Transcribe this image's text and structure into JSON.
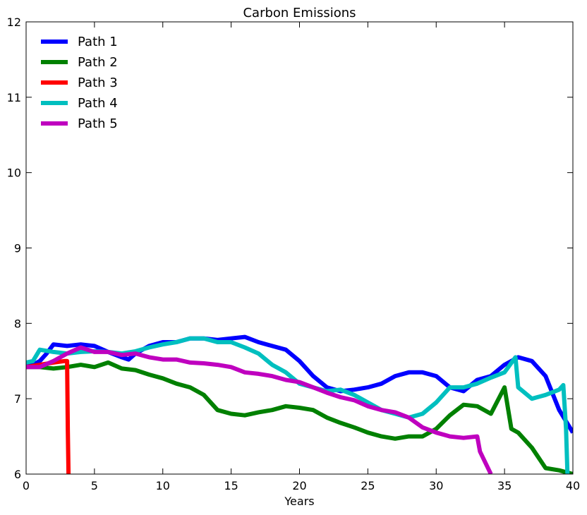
{
  "chart_data": {
    "type": "line",
    "title": "Carbon Emissions",
    "xlabel": "Years",
    "ylabel": "",
    "xlim": [
      0,
      40
    ],
    "ylim": [
      6,
      12
    ],
    "xticks": [
      0,
      5,
      10,
      15,
      20,
      25,
      30,
      35,
      40
    ],
    "yticks": [
      6,
      7,
      8,
      9,
      10,
      11,
      12
    ],
    "grid": false,
    "legend_position": "top-left",
    "series": [
      {
        "name": "Path 1",
        "color": "#0000ff",
        "points": [
          [
            0,
            7.47
          ],
          [
            0.5,
            7.45
          ],
          [
            1,
            7.5
          ],
          [
            1.5,
            7.6
          ],
          [
            2,
            7.72
          ],
          [
            3,
            7.7
          ],
          [
            4,
            7.72
          ],
          [
            5,
            7.7
          ],
          [
            6,
            7.62
          ],
          [
            7,
            7.55
          ],
          [
            7.5,
            7.52
          ],
          [
            8,
            7.6
          ],
          [
            9,
            7.7
          ],
          [
            10,
            7.75
          ],
          [
            11,
            7.75
          ],
          [
            12,
            7.8
          ],
          [
            13,
            7.8
          ],
          [
            14,
            7.78
          ],
          [
            15,
            7.8
          ],
          [
            16,
            7.82
          ],
          [
            17,
            7.75
          ],
          [
            18,
            7.7
          ],
          [
            19,
            7.65
          ],
          [
            20,
            7.5
          ],
          [
            21,
            7.3
          ],
          [
            22,
            7.15
          ],
          [
            23,
            7.1
          ],
          [
            24,
            7.12
          ],
          [
            25,
            7.15
          ],
          [
            26,
            7.2
          ],
          [
            27,
            7.3
          ],
          [
            28,
            7.35
          ],
          [
            29,
            7.35
          ],
          [
            30,
            7.3
          ],
          [
            31,
            7.15
          ],
          [
            32,
            7.1
          ],
          [
            33,
            7.25
          ],
          [
            34,
            7.3
          ],
          [
            35,
            7.45
          ],
          [
            36,
            7.55
          ],
          [
            37,
            7.5
          ],
          [
            38,
            7.3
          ],
          [
            39,
            6.85
          ],
          [
            40,
            6.55
          ]
        ]
      },
      {
        "name": "Path 2",
        "color": "#008000",
        "points": [
          [
            0,
            7.42
          ],
          [
            1,
            7.42
          ],
          [
            2,
            7.4
          ],
          [
            3,
            7.42
          ],
          [
            4,
            7.45
          ],
          [
            5,
            7.42
          ],
          [
            6,
            7.48
          ],
          [
            7,
            7.4
          ],
          [
            8,
            7.38
          ],
          [
            9,
            7.32
          ],
          [
            10,
            7.27
          ],
          [
            11,
            7.2
          ],
          [
            12,
            7.15
          ],
          [
            13,
            7.05
          ],
          [
            14,
            6.85
          ],
          [
            15,
            6.8
          ],
          [
            16,
            6.78
          ],
          [
            17,
            6.82
          ],
          [
            18,
            6.85
          ],
          [
            19,
            6.9
          ],
          [
            20,
            6.88
          ],
          [
            21,
            6.85
          ],
          [
            22,
            6.75
          ],
          [
            23,
            6.68
          ],
          [
            24,
            6.62
          ],
          [
            25,
            6.55
          ],
          [
            26,
            6.5
          ],
          [
            27,
            6.47
          ],
          [
            28,
            6.5
          ],
          [
            29,
            6.5
          ],
          [
            30,
            6.6
          ],
          [
            31,
            6.78
          ],
          [
            32,
            6.92
          ],
          [
            33,
            6.9
          ],
          [
            34,
            6.8
          ],
          [
            35,
            7.15
          ],
          [
            35.5,
            6.6
          ],
          [
            36,
            6.55
          ],
          [
            37,
            6.35
          ],
          [
            38,
            6.08
          ],
          [
            39,
            6.05
          ],
          [
            40,
            6.0
          ]
        ]
      },
      {
        "name": "Path 3",
        "color": "#ff0000",
        "points": [
          [
            0,
            7.42
          ],
          [
            1,
            7.45
          ],
          [
            2,
            7.48
          ],
          [
            2.8,
            7.5
          ],
          [
            3.0,
            7.5
          ],
          [
            3.05,
            6.6
          ],
          [
            3.1,
            6.0
          ]
        ]
      },
      {
        "name": "Path 4",
        "color": "#00bfbf",
        "points": [
          [
            0,
            7.48
          ],
          [
            0.5,
            7.5
          ],
          [
            1,
            7.65
          ],
          [
            2,
            7.62
          ],
          [
            3,
            7.6
          ],
          [
            4,
            7.62
          ],
          [
            5,
            7.63
          ],
          [
            6,
            7.62
          ],
          [
            7,
            7.6
          ],
          [
            8,
            7.63
          ],
          [
            9,
            7.68
          ],
          [
            10,
            7.72
          ],
          [
            11,
            7.75
          ],
          [
            12,
            7.8
          ],
          [
            13,
            7.8
          ],
          [
            14,
            7.75
          ],
          [
            15,
            7.75
          ],
          [
            16,
            7.68
          ],
          [
            17,
            7.6
          ],
          [
            18,
            7.45
          ],
          [
            19,
            7.35
          ],
          [
            20,
            7.2
          ],
          [
            21,
            7.15
          ],
          [
            22,
            7.1
          ],
          [
            23,
            7.12
          ],
          [
            24,
            7.05
          ],
          [
            25,
            6.95
          ],
          [
            26,
            6.85
          ],
          [
            27,
            6.8
          ],
          [
            28,
            6.75
          ],
          [
            29,
            6.8
          ],
          [
            30,
            6.95
          ],
          [
            31,
            7.15
          ],
          [
            32,
            7.15
          ],
          [
            33,
            7.2
          ],
          [
            34,
            7.28
          ],
          [
            35,
            7.35
          ],
          [
            35.8,
            7.55
          ],
          [
            36,
            7.15
          ],
          [
            37,
            7.0
          ],
          [
            38,
            7.05
          ],
          [
            39,
            7.12
          ],
          [
            39.3,
            7.18
          ],
          [
            39.5,
            6.6
          ],
          [
            39.6,
            6.0
          ]
        ]
      },
      {
        "name": "Path 5",
        "color": "#bf00bf",
        "points": [
          [
            0,
            7.42
          ],
          [
            1,
            7.42
          ],
          [
            2,
            7.5
          ],
          [
            3,
            7.6
          ],
          [
            4,
            7.68
          ],
          [
            5,
            7.62
          ],
          [
            6,
            7.62
          ],
          [
            7,
            7.58
          ],
          [
            8,
            7.6
          ],
          [
            9,
            7.55
          ],
          [
            10,
            7.52
          ],
          [
            11,
            7.52
          ],
          [
            12,
            7.48
          ],
          [
            13,
            7.47
          ],
          [
            14,
            7.45
          ],
          [
            15,
            7.42
          ],
          [
            16,
            7.35
          ],
          [
            17,
            7.33
          ],
          [
            18,
            7.3
          ],
          [
            19,
            7.25
          ],
          [
            20,
            7.22
          ],
          [
            21,
            7.15
          ],
          [
            22,
            7.08
          ],
          [
            23,
            7.02
          ],
          [
            24,
            6.98
          ],
          [
            25,
            6.9
          ],
          [
            26,
            6.85
          ],
          [
            27,
            6.82
          ],
          [
            28,
            6.75
          ],
          [
            29,
            6.62
          ],
          [
            30,
            6.55
          ],
          [
            31,
            6.5
          ],
          [
            32,
            6.48
          ],
          [
            33,
            6.5
          ],
          [
            33.2,
            6.3
          ],
          [
            34,
            6.0
          ]
        ]
      }
    ]
  }
}
